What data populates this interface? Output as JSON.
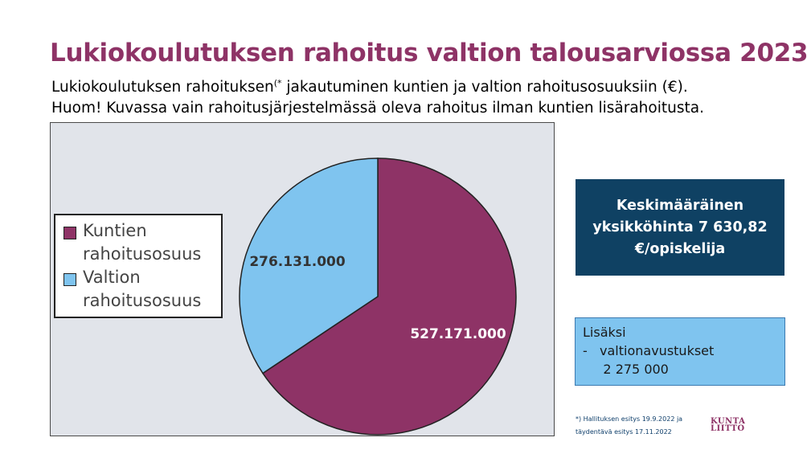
{
  "title": "Lukiokoulutuksen rahoitus valtion talousarviossa 2023",
  "subtitle": {
    "line1_a": "Lukiokoulutuksen rahoituksen",
    "line1_sup": "(*",
    "line1_b": " jakautuminen kuntien ja valtion rahoitusosuuksiin (€).",
    "line2": "Huom! Kuvassa vain rahoitusjärjestelmässä oleva rahoitus ilman kuntien lisärahoitusta."
  },
  "chart_data": {
    "type": "pie",
    "start_angle_deg": 0,
    "direction": "clockwise",
    "slices": [
      {
        "label": "Kuntien rahoitusosuus",
        "value": 527171000,
        "display": "527.171.000",
        "color": "#8e3366",
        "label_color": "#ffffff"
      },
      {
        "label": "Valtion rahoitusosuus",
        "value": 276131000,
        "display": "276.131.000",
        "color": "#7fc4ef",
        "label_color": "#333333"
      }
    ],
    "legend_position": "left"
  },
  "legend": {
    "item1": "Kuntien rahoitusosuus",
    "item2": "Valtion rahoitusosuus"
  },
  "info_box": {
    "text": "Keskimääräinen yksikköhinta 7 630,82 €/opiskelija"
  },
  "extra_box": {
    "line1": "Lisäksi",
    "line2": "-   valtionavustukset",
    "line3": "     2 275 000"
  },
  "footnote": {
    "line1": "*) Hallituksen esitys 19.9.2022 ja",
    "line2": "täydentävä esitys 17.11.2022"
  },
  "logo": {
    "line1": "KUNTA",
    "line2": "LIITTO"
  },
  "colors": {
    "title": "#8e3366",
    "kuntien": "#8e3366",
    "valtion": "#7fc4ef",
    "info_box_bg": "#0f4163",
    "chart_bg": "#e1e4ea"
  }
}
